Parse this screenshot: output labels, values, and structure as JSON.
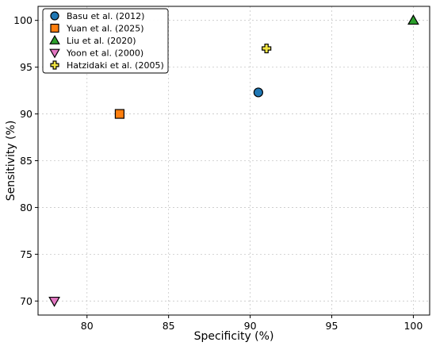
{
  "chart_data": {
    "type": "scatter",
    "title": "",
    "xlabel": "Specificity (%)",
    "ylabel": "Sensitivity (%)",
    "xlim": [
      77,
      101
    ],
    "ylim": [
      68.5,
      101.5
    ],
    "xticks": [
      80,
      85,
      90,
      95,
      100
    ],
    "yticks": [
      70,
      75,
      80,
      85,
      90,
      95,
      100
    ],
    "grid": true,
    "legend_position": "top-left",
    "series": [
      {
        "name": "Basu et al. (2012)",
        "marker": "circle",
        "color": "#1f77b4",
        "x": 90.5,
        "y": 92.3
      },
      {
        "name": "Yuan et al. (2025)",
        "marker": "square",
        "color": "#ff7f0e",
        "x": 82.0,
        "y": 90.0
      },
      {
        "name": "Liu et al. (2020)",
        "marker": "triangle-up",
        "color": "#2ca02c",
        "x": 100.0,
        "y": 100.0
      },
      {
        "name": "Yoon et al. (2000)",
        "marker": "triangle-down",
        "color": "#e377c2",
        "x": 78.0,
        "y": 70.0
      },
      {
        "name": "Hatzidaki et al. (2005)",
        "marker": "plus",
        "color": "#f0e442",
        "x": 91.0,
        "y": 97.0
      }
    ]
  }
}
